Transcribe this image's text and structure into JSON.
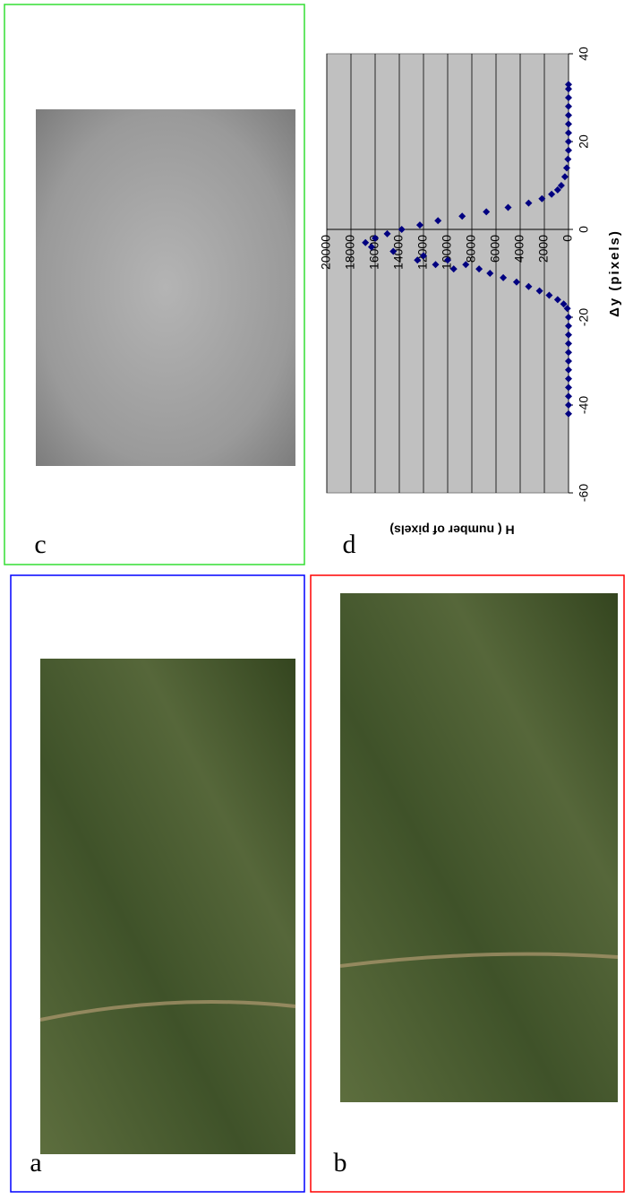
{
  "panel_labels": [
    "a",
    "b",
    "c",
    "d"
  ],
  "chart_data": {
    "type": "scatter",
    "xlabel": "Δy (pixels)",
    "ylabel": "H ( number of pixels)",
    "x": [
      -42,
      -40,
      -38,
      -36,
      -34,
      -32,
      -30,
      -28,
      -26,
      -24,
      -22,
      -20,
      -18,
      -17,
      -16,
      -15,
      -14,
      -13,
      -12,
      -11,
      -10,
      -9,
      -8,
      -7,
      -6,
      -5,
      -4,
      -3,
      -2,
      -1,
      0,
      1,
      2,
      3,
      4,
      5,
      6,
      7,
      8,
      9,
      10,
      12,
      14,
      16,
      18,
      20,
      22,
      24,
      26,
      28,
      30,
      32,
      33,
      -9,
      -8,
      -7
    ],
    "values": [
      0,
      0,
      0,
      0,
      0,
      0,
      0,
      0,
      0,
      0,
      0,
      0,
      100,
      400,
      900,
      1600,
      2400,
      3300,
      4300,
      5400,
      6500,
      7400,
      8500,
      10000,
      12000,
      14500,
      16300,
      16800,
      16000,
      15000,
      13800,
      12300,
      10800,
      8800,
      6800,
      5000,
      3300,
      2200,
      1400,
      900,
      600,
      300,
      150,
      50,
      0,
      0,
      0,
      0,
      0,
      0,
      0,
      0,
      0,
      9500,
      11000,
      12500
    ],
    "color": "#000080",
    "xlim": [
      -60,
      40
    ],
    "xticks": [
      -60,
      -40,
      -20,
      0,
      20,
      40
    ],
    "ylim": [
      0,
      20000
    ],
    "yticks": [
      0,
      2000,
      4000,
      6000,
      8000,
      10000,
      12000,
      14000,
      16000,
      18000,
      20000
    ],
    "grid": true
  }
}
